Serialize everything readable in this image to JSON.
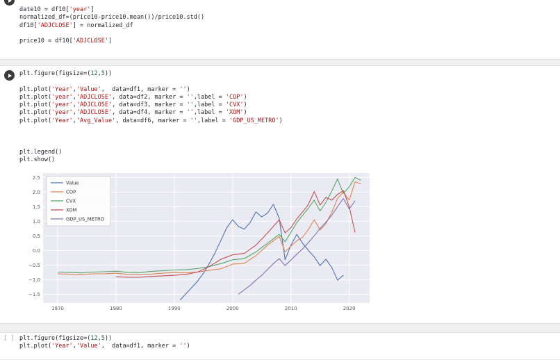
{
  "notebook": {
    "cells": [
      {
        "type": "code",
        "gutter": "run",
        "lines": [
          "date10 = df10['year']",
          "normalized_df=(price10-price10.mean())/price10.std()",
          "df10['ADJCLOSE'] = normalized_df",
          "",
          "price10 = df10['ADJCLOSE']"
        ]
      },
      {
        "type": "code",
        "gutter": "run",
        "lines": [
          "plt.figure(figsize=(12,5))",
          "",
          "plt.plot('Year','Value',  data=df1, marker = '')",
          "plt.plot('year','ADJCLOSE', data=df2, marker = '',label = 'COP')",
          "plt.plot('year','ADJCLOSE', data=df3, marker = '',label = 'CVX')",
          "plt.plot('year','ADJCLOSE', data=df4, marker = '',label = 'XOM')",
          "plt.plot('Year','Avg_Value', data=df6, marker = '',label = 'GDP_US_METRO')",
          "",
          "",
          "",
          "plt.legend()",
          "plt.show()"
        ]
      },
      {
        "type": "code",
        "gutter": "[ ]",
        "lines": [
          "plt.figure(figsize=(12,5))",
          "plt.plot('Year','Value',  data=df1, marker = '')"
        ]
      }
    ]
  },
  "chart_data": {
    "type": "line",
    "title": "",
    "xlabel": "",
    "ylabel": "",
    "grid": true,
    "background": "#eaeaf2",
    "gridcolor": "#ffffff",
    "legend_position": "upper left",
    "xlim": [
      1967.5,
      2023.5
    ],
    "ylim": [
      -1.8,
      2.65
    ],
    "x_ticks": [
      1970,
      1980,
      1990,
      2000,
      2010,
      2020
    ],
    "y_ticks": [
      -1.5,
      -1.0,
      -0.5,
      0.0,
      0.5,
      1.0,
      1.5,
      2.0,
      2.5
    ],
    "series": [
      {
        "name": "Value",
        "color": "#4c72b0",
        "points": [
          [
            1991,
            -1.7
          ],
          [
            1992,
            -1.48
          ],
          [
            1993,
            -1.27
          ],
          [
            1994,
            -1.05
          ],
          [
            1995,
            -0.78
          ],
          [
            1996,
            -0.45
          ],
          [
            1997,
            -0.08
          ],
          [
            1998,
            0.35
          ],
          [
            1999,
            0.78
          ],
          [
            2000,
            1.05
          ],
          [
            2001,
            0.82
          ],
          [
            2002,
            0.73
          ],
          [
            2003,
            0.95
          ],
          [
            2004,
            1.32
          ],
          [
            2005,
            1.15
          ],
          [
            2006,
            1.28
          ],
          [
            2007,
            1.58
          ],
          [
            2008,
            1.1
          ],
          [
            2009,
            -0.32
          ],
          [
            2010,
            0.18
          ],
          [
            2011,
            0.55
          ],
          [
            2012,
            0.25
          ],
          [
            2013,
            0.0
          ],
          [
            2014,
            -0.22
          ],
          [
            2015,
            -0.52
          ],
          [
            2016,
            -0.3
          ],
          [
            2017,
            -0.58
          ],
          [
            2018,
            -1.02
          ],
          [
            2019,
            -0.85
          ]
        ]
      },
      {
        "name": "COP",
        "color": "#dd8452",
        "points": [
          [
            1970,
            -0.8
          ],
          [
            1972,
            -0.81
          ],
          [
            1974,
            -0.83
          ],
          [
            1976,
            -0.8
          ],
          [
            1978,
            -0.8
          ],
          [
            1980,
            -0.78
          ],
          [
            1982,
            -0.82
          ],
          [
            1984,
            -0.83
          ],
          [
            1986,
            -0.81
          ],
          [
            1988,
            -0.78
          ],
          [
            1990,
            -0.75
          ],
          [
            1992,
            -0.77
          ],
          [
            1994,
            -0.74
          ],
          [
            1996,
            -0.68
          ],
          [
            1998,
            -0.63
          ],
          [
            2000,
            -0.47
          ],
          [
            2002,
            -0.44
          ],
          [
            2004,
            -0.18
          ],
          [
            2006,
            0.18
          ],
          [
            2007,
            0.33
          ],
          [
            2008,
            0.48
          ],
          [
            2009,
            -0.05
          ],
          [
            2010,
            0.15
          ],
          [
            2011,
            0.33
          ],
          [
            2012,
            0.45
          ],
          [
            2013,
            0.72
          ],
          [
            2014,
            1.05
          ],
          [
            2015,
            0.7
          ],
          [
            2016,
            0.92
          ],
          [
            2017,
            1.3
          ],
          [
            2018,
            1.78
          ],
          [
            2019,
            2.0
          ],
          [
            2020,
            1.72
          ],
          [
            2021,
            2.35
          ],
          [
            2022,
            2.28
          ]
        ]
      },
      {
        "name": "CVX",
        "color": "#55a868",
        "points": [
          [
            1970,
            -0.74
          ],
          [
            1972,
            -0.75
          ],
          [
            1974,
            -0.77
          ],
          [
            1976,
            -0.74
          ],
          [
            1978,
            -0.73
          ],
          [
            1980,
            -0.71
          ],
          [
            1982,
            -0.75
          ],
          [
            1984,
            -0.76
          ],
          [
            1986,
            -0.72
          ],
          [
            1988,
            -0.69
          ],
          [
            1990,
            -0.67
          ],
          [
            1992,
            -0.66
          ],
          [
            1994,
            -0.62
          ],
          [
            1996,
            -0.55
          ],
          [
            1998,
            -0.45
          ],
          [
            2000,
            -0.32
          ],
          [
            2002,
            -0.28
          ],
          [
            2004,
            -0.05
          ],
          [
            2006,
            0.25
          ],
          [
            2008,
            0.55
          ],
          [
            2009,
            0.3
          ],
          [
            2010,
            0.62
          ],
          [
            2011,
            0.95
          ],
          [
            2012,
            1.2
          ],
          [
            2013,
            1.45
          ],
          [
            2014,
            1.72
          ],
          [
            2015,
            1.35
          ],
          [
            2016,
            1.65
          ],
          [
            2017,
            2.02
          ],
          [
            2018,
            2.45
          ],
          [
            2019,
            1.95
          ],
          [
            2020,
            2.18
          ],
          [
            2021,
            2.5
          ],
          [
            2022,
            2.4
          ]
        ]
      },
      {
        "name": "XOM",
        "color": "#c44e52",
        "points": [
          [
            1980,
            -0.9
          ],
          [
            1982,
            -0.92
          ],
          [
            1984,
            -0.92
          ],
          [
            1986,
            -0.89
          ],
          [
            1988,
            -0.87
          ],
          [
            1990,
            -0.85
          ],
          [
            1992,
            -0.82
          ],
          [
            1994,
            -0.74
          ],
          [
            1996,
            -0.55
          ],
          [
            1998,
            -0.3
          ],
          [
            2000,
            -0.15
          ],
          [
            2002,
            -0.1
          ],
          [
            2004,
            0.18
          ],
          [
            2006,
            0.6
          ],
          [
            2008,
            1.05
          ],
          [
            2009,
            0.6
          ],
          [
            2010,
            0.78
          ],
          [
            2011,
            1.08
          ],
          [
            2012,
            1.32
          ],
          [
            2013,
            1.58
          ],
          [
            2014,
            2.02
          ],
          [
            2015,
            1.55
          ],
          [
            2016,
            1.82
          ],
          [
            2017,
            1.72
          ],
          [
            2018,
            1.92
          ],
          [
            2019,
            2.05
          ],
          [
            2020,
            1.5
          ],
          [
            2021,
            0.62
          ]
        ]
      },
      {
        "name": "GDP_US_METRO",
        "color": "#8172b3",
        "points": [
          [
            2001,
            -1.5
          ],
          [
            2002,
            -1.35
          ],
          [
            2003,
            -1.2
          ],
          [
            2004,
            -1.02
          ],
          [
            2005,
            -0.85
          ],
          [
            2006,
            -0.65
          ],
          [
            2007,
            -0.45
          ],
          [
            2008,
            -0.28
          ],
          [
            2009,
            -0.52
          ],
          [
            2010,
            -0.33
          ],
          [
            2011,
            -0.13
          ],
          [
            2012,
            0.05
          ],
          [
            2013,
            0.27
          ],
          [
            2014,
            0.5
          ],
          [
            2015,
            0.75
          ],
          [
            2016,
            0.97
          ],
          [
            2017,
            1.2
          ],
          [
            2018,
            1.5
          ],
          [
            2019,
            1.78
          ],
          [
            2020,
            1.42
          ],
          [
            2021,
            1.7
          ]
        ]
      }
    ]
  }
}
